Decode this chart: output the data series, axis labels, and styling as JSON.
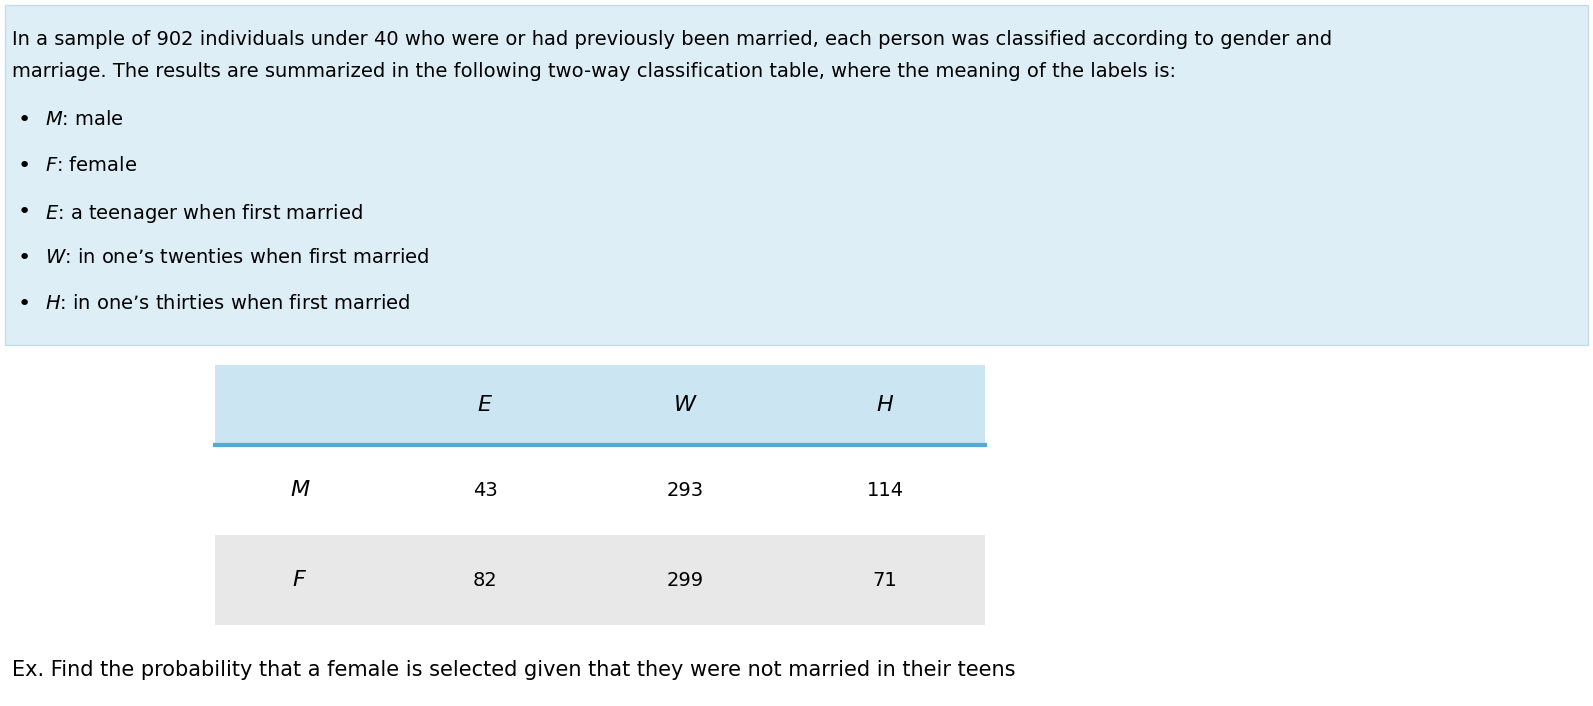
{
  "line1": "In a sample of 902 individuals under 40 who were or had previously been married, each person was classified according to gender and",
  "line2": "marriage. The results are summarized in the following two-way classification table, where the meaning of the labels is:",
  "bullets": [
    "$\\mathit{M}$: male",
    "$\\mathit{F}$: female",
    "$\\mathit{E}$: a teenager when first married",
    "$\\mathit{W}$: in one’s twenties when first married",
    "$\\mathit{H}$: in one’s thirties when first married"
  ],
  "col_headers": [
    "$\\mathit{E}$",
    "$\\mathit{W}$",
    "$\\mathit{H}$"
  ],
  "row_headers": [
    "$\\mathit{M}$",
    "$\\mathit{F}$"
  ],
  "table_data": [
    [
      43,
      293,
      114
    ],
    [
      82,
      299,
      71
    ]
  ],
  "footer_text": "Ex. Find the probability that a female is selected given that they were not married in their teens",
  "bg_color_top": "#ddeef6",
  "bg_color_table_header": "#cce5f2",
  "bg_color_row_white": "#ffffff",
  "bg_color_row_gray": "#e8e8e8",
  "text_color": "#000000",
  "border_color": "#55aad4",
  "box_border_color": "#c5dce8",
  "font_size_body": 14,
  "font_size_table": 14,
  "font_size_footer": 15
}
